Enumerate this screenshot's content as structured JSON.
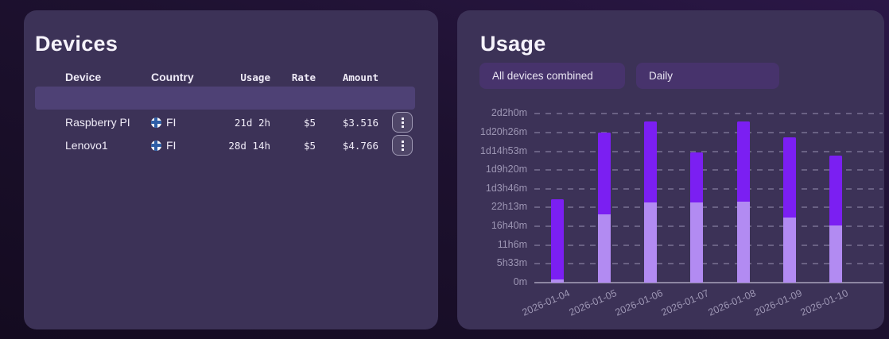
{
  "devices_panel": {
    "title": "Devices",
    "columns": {
      "device": "Device",
      "country": "Country",
      "usage": "Usage",
      "rate": "Rate",
      "amount": "Amount"
    },
    "rows": [
      {
        "status": "online",
        "name": "Raspberry PI",
        "country": "FI",
        "usage": "21d 2h",
        "rate": "$5",
        "amount": "$3.516",
        "selected": true,
        "menu_icon": "kebab-menu"
      },
      {
        "status": "online",
        "name": "Lenovo1",
        "country": "FI",
        "usage": "28d 14h",
        "rate": "$5",
        "amount": "$4.766",
        "selected": false,
        "menu_icon": "kebab-menu"
      }
    ],
    "status_color": "#2fd7a1"
  },
  "usage_panel": {
    "title": "Usage",
    "filters": [
      {
        "label": "All devices combined"
      },
      {
        "label": "Daily"
      }
    ]
  },
  "chart_data": {
    "type": "bar",
    "stacked": true,
    "title": "",
    "xlabel": "",
    "ylabel": "",
    "legend": "none",
    "grid": "dashed horizontal",
    "categories": [
      "2026-01-04",
      "2026-01-05",
      "2026-01-06",
      "2026-01-07",
      "2026-01-08",
      "2026-01-09",
      "2026-01-10"
    ],
    "series": [
      {
        "name": "lower-segment",
        "color": "#b28bf2",
        "values_minutes": [
          50,
          1215,
          1430,
          1425,
          1435,
          1150,
          1015
        ]
      },
      {
        "name": "upper-segment",
        "color": "#7b1ff2",
        "values_minutes": [
          1435,
          1445,
          1435,
          890,
          1435,
          1430,
          1235
        ]
      }
    ],
    "totals_minutes": [
      1485,
      2660,
      2865,
      2315,
      2870,
      2580,
      2250
    ],
    "y_max_minutes": 3000,
    "y_ticks": [
      {
        "label": "0m",
        "minutes": 0
      },
      {
        "label": "5h33m",
        "minutes": 333
      },
      {
        "label": "11h6m",
        "minutes": 667
      },
      {
        "label": "16h40m",
        "minutes": 1000
      },
      {
        "label": "22h13m",
        "minutes": 1333
      },
      {
        "label": "1d3h46m",
        "minutes": 1667
      },
      {
        "label": "1d9h20m",
        "minutes": 2000
      },
      {
        "label": "1d14h53m",
        "minutes": 2333
      },
      {
        "label": "1d20h26m",
        "minutes": 2667
      },
      {
        "label": "2d2h0m",
        "minutes": 3000
      }
    ]
  },
  "colors": {
    "page_bg_top_right": "#2b1747",
    "page_bg_bottom_left": "#140b20",
    "card_bg": "#3c3257",
    "selected_row_bg": "#4e4175",
    "filter_button_bg": "#47336c",
    "bar_light": "#b28bf2",
    "bar_dark": "#7b1ff2",
    "status_dot": "#2fd7a1",
    "axis_text": "#9d96b4"
  }
}
